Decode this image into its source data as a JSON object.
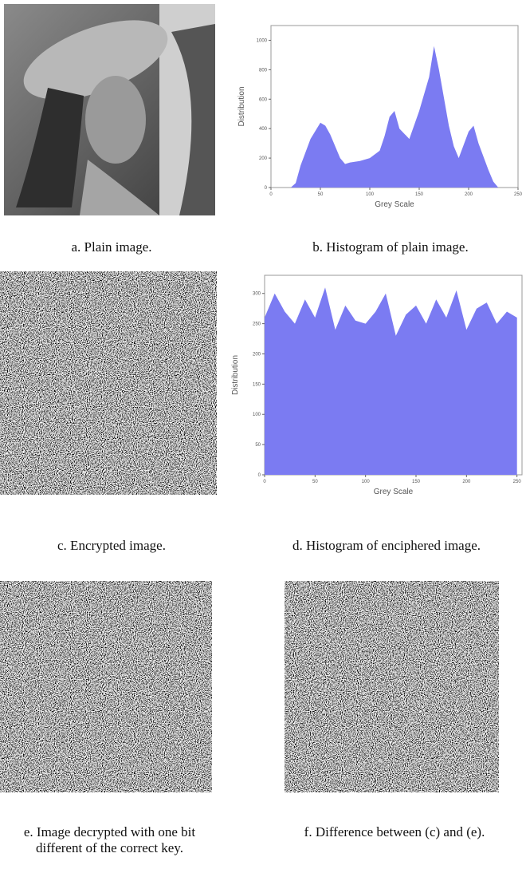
{
  "captions": [
    "a. Plain image.",
    "b. Histogram of plain image.",
    "c. Encrypted image.",
    "d. Histogram of enciphered image.",
    "e. Image decrypted with one bit different of the correct key.",
    "f. Difference between (c) and (e)."
  ],
  "chart_data": [
    {
      "type": "area",
      "ylabel": "Distribution",
      "xlabel": "Grey Scale",
      "color": "#7b7bf2",
      "x": [
        0,
        20,
        25,
        30,
        40,
        50,
        55,
        60,
        70,
        75,
        80,
        90,
        100,
        110,
        115,
        120,
        125,
        130,
        140,
        150,
        160,
        165,
        170,
        180,
        185,
        190,
        200,
        205,
        210,
        220,
        225,
        230,
        250
      ],
      "values": [
        0,
        0,
        30,
        150,
        330,
        440,
        420,
        360,
        200,
        160,
        170,
        180,
        200,
        250,
        350,
        480,
        520,
        400,
        330,
        520,
        750,
        960,
        800,
        420,
        280,
        200,
        380,
        420,
        300,
        120,
        40,
        0,
        0
      ],
      "xlim": [
        0,
        250
      ],
      "ylim": [
        0,
        1100
      ],
      "xticks": [
        0,
        50,
        100,
        150,
        200,
        250
      ],
      "yticks": [
        0,
        200,
        400,
        600,
        800,
        1000
      ]
    },
    {
      "type": "area",
      "ylabel": "Distribution",
      "xlabel": "Grey Scale",
      "color": "#7b7bf2",
      "x": [
        0,
        10,
        20,
        30,
        40,
        50,
        60,
        70,
        80,
        90,
        100,
        110,
        120,
        130,
        140,
        150,
        160,
        170,
        180,
        190,
        200,
        210,
        220,
        230,
        240,
        250
      ],
      "values": [
        260,
        300,
        270,
        250,
        290,
        260,
        310,
        240,
        280,
        255,
        250,
        270,
        300,
        230,
        265,
        280,
        250,
        290,
        260,
        305,
        240,
        275,
        285,
        250,
        270,
        260
      ],
      "xlim": [
        0,
        255
      ],
      "ylim": [
        0,
        330
      ],
      "xticks": [
        0,
        50,
        100,
        150,
        200,
        250
      ],
      "yticks": [
        0,
        50,
        100,
        150,
        200,
        250,
        300
      ]
    }
  ]
}
